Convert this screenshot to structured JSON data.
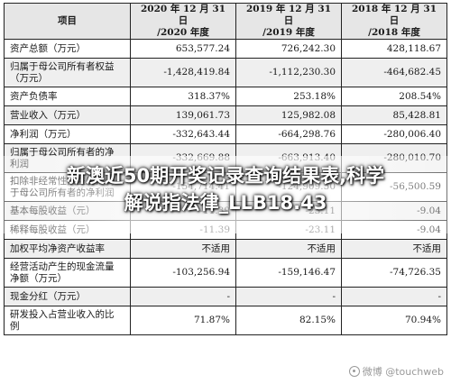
{
  "table": {
    "headers": [
      "项目",
      "2020 年 12 月 31 日\n/2020 年度",
      "2019 年 12 月 31 日\n/2019 年度",
      "2018 年 12 月 31 日\n/2018 年度"
    ],
    "rows": [
      {
        "label": "资产总额（万元）",
        "values": [
          "653,577.24",
          "726,242.30",
          "428,118.67"
        ]
      },
      {
        "label": "归属于母公司所有者权益\n（万元）",
        "values": [
          "-1,428,419.84",
          "-1,112,230.30",
          "-464,682.45"
        ]
      },
      {
        "label": "资产负债率",
        "values": [
          "318.37%",
          "253.18%",
          "208.54%"
        ]
      },
      {
        "label": "营业收入（万元）",
        "values": [
          "139,061.73",
          "125,982.08",
          "85,428.81"
        ]
      },
      {
        "label": "净利润（万元）",
        "values": [
          "-332,643.44",
          "-664,298.76",
          "-280,006.40"
        ]
      },
      {
        "label": "归属于母公司所有者的净\n利润",
        "values": [
          "-332,669.88",
          "-663,913.40",
          "-280,010.70"
        ]
      },
      {
        "label": "扣除非经常性损益后归属\n于母公司所有者的净利润",
        "values": [
          "-154,714.41",
          "-124,909.50",
          "-56,500.59"
        ]
      },
      {
        "label": "基本每股收益（元）",
        "values": [
          "-11.39",
          "-23.11",
          "-9.04"
        ]
      },
      {
        "label": "稀释每股收益（元）",
        "values": [
          "-11.39",
          "-23.11",
          "-9.04"
        ]
      },
      {
        "label": "加权平均净资产收益率",
        "values": [
          "不适用",
          "不适用",
          "不适用"
        ]
      },
      {
        "label": "经营活动产生的现金流量\n净额（万元）",
        "values": [
          "-103,256.94",
          "-159,146.47",
          "-74,726.35"
        ]
      },
      {
        "label": "现金分红（万元）",
        "values": [
          "-",
          "-",
          "-"
        ]
      },
      {
        "label": "研发投入占营业收入的比\n例",
        "values": [
          "71.87%",
          "82.15%",
          "70.94%"
        ]
      }
    ]
  },
  "overlay": {
    "line1": "新澳近50期开奖记录查询结果表,科学",
    "line2": "解说指法律_LLB18.43"
  },
  "watermark": {
    "text": "微博 @touchweb"
  },
  "colors": {
    "header_bg": "#e6e6e6",
    "alt_row_bg": "#efefef",
    "border": "#222222"
  }
}
